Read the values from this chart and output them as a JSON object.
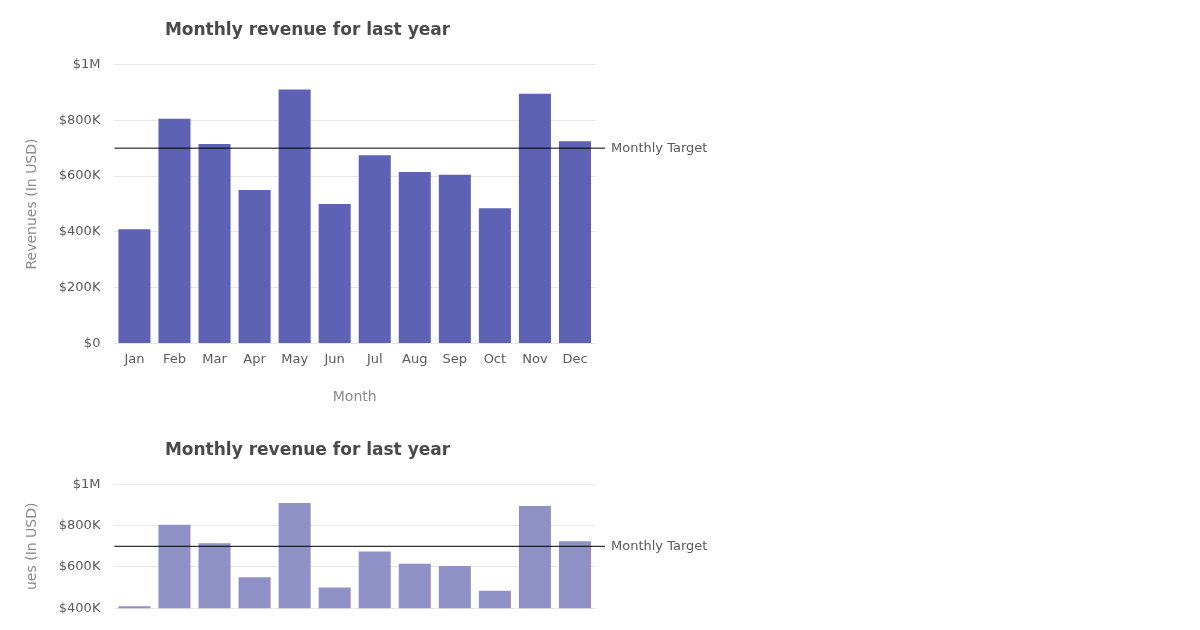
{
  "chart_data": [
    {
      "type": "bar",
      "title": "Monthly revenue for last year",
      "xlabel": "Month",
      "ylabel": "Revenues (In USD)",
      "categories": [
        "Jan",
        "Feb",
        "Mar",
        "Apr",
        "May",
        "Jun",
        "Jul",
        "Aug",
        "Sep",
        "Oct",
        "Nov",
        "Dec"
      ],
      "values": [
        410000,
        805000,
        715000,
        550000,
        910000,
        500000,
        675000,
        615000,
        605000,
        485000,
        895000,
        725000
      ],
      "color": "#5d62b5",
      "ylim": [
        0,
        1000000
      ],
      "yticks": [
        {
          "value": 0,
          "label": "$0"
        },
        {
          "value": 200000,
          "label": "$200K"
        },
        {
          "value": 400000,
          "label": "$400K"
        },
        {
          "value": 600000,
          "label": "$600K"
        },
        {
          "value": 800000,
          "label": "$800K"
        },
        {
          "value": 1000000,
          "label": "$1M"
        }
      ],
      "grid": "y",
      "legend": false,
      "ref_lines": [
        {
          "axis": "y",
          "value": 700000,
          "label": "Monthly Target",
          "color": "#000000"
        }
      ]
    },
    {
      "type": "bar",
      "title": "Monthly revenue for last year",
      "ylabel": "ues (In USD)",
      "categories": [
        null,
        null,
        null,
        null,
        null,
        null,
        null,
        null,
        null,
        null,
        null,
        null
      ],
      "values": [
        410000,
        805000,
        715000,
        550000,
        910000,
        500000,
        675000,
        615000,
        605000,
        485000,
        895000,
        725000
      ],
      "color": "#8f91c6",
      "ylim": [
        400000,
        1000000
      ],
      "yticks": [
        {
          "value": 400000,
          "label": "$400K"
        },
        {
          "value": 600000,
          "label": "$600K"
        },
        {
          "value": 800000,
          "label": "$800K"
        },
        {
          "value": 1000000,
          "label": "$1M"
        }
      ],
      "tick_labels": "y",
      "grid": "y",
      "legend": false,
      "ref_lines": [
        {
          "axis": "y",
          "value": 700000,
          "label": "Monthly Target",
          "color": "#000000"
        }
      ]
    }
  ]
}
